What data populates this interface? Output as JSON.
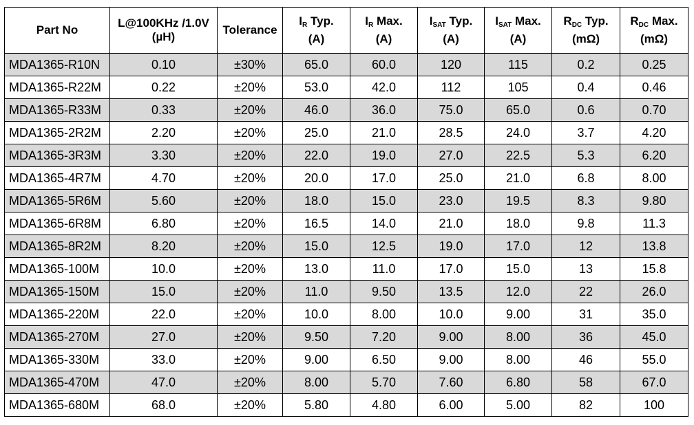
{
  "table": {
    "headers": {
      "part_no": "Part No",
      "inductance": {
        "line1": "L@100KHz /1.0V",
        "line2": "(µH)"
      },
      "tolerance": "Tolerance",
      "ir_typ": {
        "main": "I",
        "sub": "R",
        "rest": " Typ.",
        "unit": "(A)"
      },
      "ir_max": {
        "main": "I",
        "sub": "R",
        "rest": " Max.",
        "unit": "(A)"
      },
      "isat_typ": {
        "main": "I",
        "sub": "SAT",
        "rest": " Typ.",
        "unit": "(A)"
      },
      "isat_max": {
        "main": "I",
        "sub": "SAT",
        "rest": " Max.",
        "unit": "(A)"
      },
      "rdc_typ": {
        "main": "R",
        "sub": "DC",
        "rest": " Typ.",
        "unit": "(mΩ)"
      },
      "rdc_max": {
        "main": "R",
        "sub": "DC",
        "rest": " Max.",
        "unit": "(mΩ)"
      }
    },
    "rows": [
      [
        "MDA1365-R10N",
        "0.10",
        "±30%",
        "65.0",
        "60.0",
        "120",
        "115",
        "0.2",
        "0.25"
      ],
      [
        "MDA1365-R22M",
        "0.22",
        "±20%",
        "53.0",
        "42.0",
        "112",
        "105",
        "0.4",
        "0.46"
      ],
      [
        "MDA1365-R33M",
        "0.33",
        "±20%",
        "46.0",
        "36.0",
        "75.0",
        "65.0",
        "0.6",
        "0.70"
      ],
      [
        "MDA1365-2R2M",
        "2.20",
        "±20%",
        "25.0",
        "21.0",
        "28.5",
        "24.0",
        "3.7",
        "4.20"
      ],
      [
        "MDA1365-3R3M",
        "3.30",
        "±20%",
        "22.0",
        "19.0",
        "27.0",
        "22.5",
        "5.3",
        "6.20"
      ],
      [
        "MDA1365-4R7M",
        "4.70",
        "±20%",
        "20.0",
        "17.0",
        "25.0",
        "21.0",
        "6.8",
        "8.00"
      ],
      [
        "MDA1365-5R6M",
        "5.60",
        "±20%",
        "18.0",
        "15.0",
        "23.0",
        "19.5",
        "8.3",
        "9.80"
      ],
      [
        "MDA1365-6R8M",
        "6.80",
        "±20%",
        "16.5",
        "14.0",
        "21.0",
        "18.0",
        "9.8",
        "11.3"
      ],
      [
        "MDA1365-8R2M",
        "8.20",
        "±20%",
        "15.0",
        "12.5",
        "19.0",
        "17.0",
        "12",
        "13.8"
      ],
      [
        "MDA1365-100M",
        "10.0",
        "±20%",
        "13.0",
        "11.0",
        "17.0",
        "15.0",
        "13",
        "15.8"
      ],
      [
        "MDA1365-150M",
        "15.0",
        "±20%",
        "11.0",
        "9.50",
        "13.5",
        "12.0",
        "22",
        "26.0"
      ],
      [
        "MDA1365-220M",
        "22.0",
        "±20%",
        "10.0",
        "8.00",
        "10.0",
        "9.00",
        "31",
        "35.0"
      ],
      [
        "MDA1365-270M",
        "27.0",
        "±20%",
        "9.50",
        "7.20",
        "9.00",
        "8.00",
        "36",
        "45.0"
      ],
      [
        "MDA1365-330M",
        "33.0",
        "±20%",
        "9.00",
        "6.50",
        "9.00",
        "8.00",
        "46",
        "55.0"
      ],
      [
        "MDA1365-470M",
        "47.0",
        "±20%",
        "8.00",
        "5.70",
        "7.60",
        "6.80",
        "58",
        "67.0"
      ],
      [
        "MDA1365-680M",
        "68.0",
        "±20%",
        "5.80",
        "4.80",
        "6.00",
        "5.00",
        "82",
        "100"
      ]
    ],
    "colors": {
      "shaded_row": "#d9d9d9",
      "plain_row": "#ffffff",
      "border": "#000000"
    }
  }
}
